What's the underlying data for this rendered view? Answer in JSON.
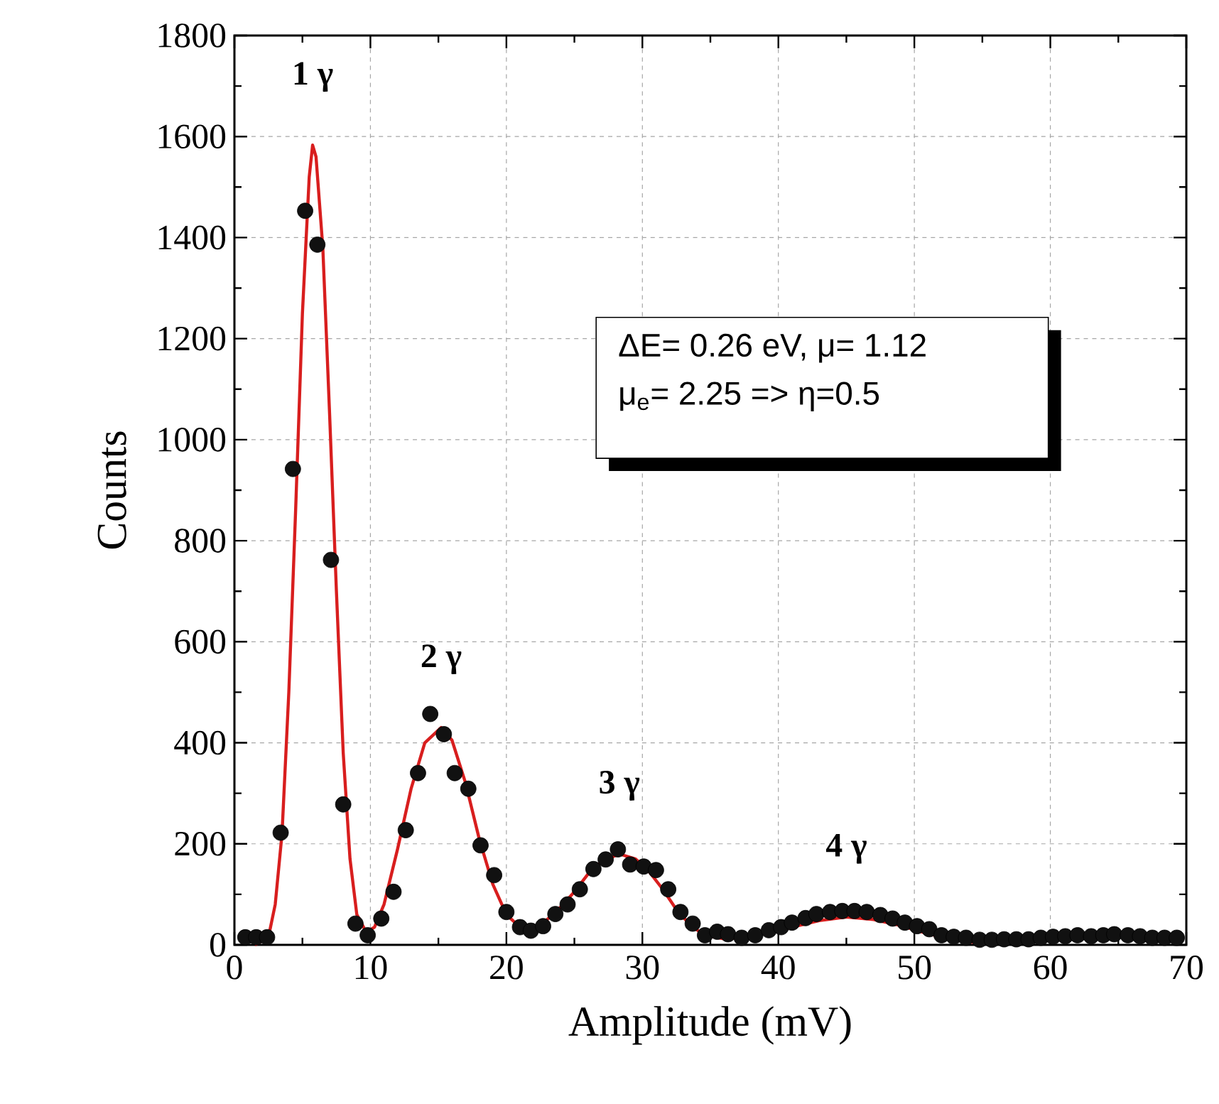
{
  "chart_data": {
    "type": "scatter",
    "xlabel": "Amplitude (mV)",
    "ylabel": "Counts",
    "xlim": [
      0,
      70
    ],
    "ylim": [
      0,
      1800
    ],
    "xticks": [
      0,
      10,
      20,
      30,
      40,
      50,
      60,
      70
    ],
    "yticks": [
      0,
      200,
      400,
      600,
      800,
      1000,
      1200,
      1400,
      1600,
      1800
    ],
    "grid": true,
    "annotations": [
      {
        "text": "1 γ",
        "x": 5.75,
        "y": 1583
      },
      {
        "text": "2 γ",
        "x": 15.2,
        "y": 430
      },
      {
        "text": "3 γ",
        "x": 28.3,
        "y": 180
      },
      {
        "text": "4 γ",
        "x": 45,
        "y": 55
      },
      "ΔE= 0.26 eV, μ= 1.12",
      "μ$_{e}$= 2.25 => η=0.5"
    ],
    "series": [
      {
        "color": "#111111",
        "x": [
          0.8,
          1.6,
          2.4,
          3.4,
          4.3,
          5.2,
          6.1,
          7.1,
          8.0,
          8.9,
          9.8,
          10.8,
          11.7,
          12.6,
          13.5,
          14.4,
          15.4,
          16.2,
          17.2,
          18.1,
          19.1,
          20.0,
          21.0,
          21.8,
          22.7,
          23.6,
          24.5,
          25.4,
          26.4,
          27.3,
          28.2,
          29.1,
          30.1,
          31.0,
          31.9,
          32.8,
          33.7,
          34.6,
          35.5,
          36.3,
          37.3,
          38.3,
          39.3,
          40.2,
          41.0,
          42.0,
          42.8,
          43.8,
          44.7,
          45.6,
          46.5,
          47.5,
          48.4,
          49.3,
          50.2,
          51.1,
          52.0,
          52.9,
          53.8,
          54.8,
          55.7,
          56.6,
          57.5,
          58.4,
          59.3,
          60.2,
          61.1,
          62.0,
          63.0,
          63.9,
          64.7,
          65.7,
          66.6,
          67.5,
          68.4,
          69.3
        ],
        "values": [
          15,
          15,
          15,
          222,
          942,
          1453,
          1386,
          762,
          278,
          42,
          19,
          52,
          105,
          227,
          340,
          457,
          417,
          340,
          309,
          197,
          138,
          65,
          35,
          28,
          37,
          61,
          80,
          110,
          150,
          169,
          189,
          159,
          155,
          148,
          110,
          65,
          42,
          19,
          26,
          21,
          14,
          19,
          29,
          35,
          44,
          53,
          61,
          65,
          67,
          67,
          65,
          59,
          52,
          44,
          37,
          31,
          19,
          16,
          14,
          10,
          10,
          11,
          11,
          11,
          14,
          16,
          17,
          19,
          17,
          19,
          21,
          19,
          17,
          14,
          14,
          14
        ]
      },
      {
        "type": "line",
        "color": "#d81e1e",
        "x": [
          1.5,
          2.5,
          3.0,
          3.5,
          4.0,
          4.5,
          5.0,
          5.5,
          5.75,
          6.0,
          6.5,
          7.0,
          7.5,
          8.0,
          8.5,
          9.0,
          9.7,
          10.3,
          11.0,
          12.0,
          13.0,
          14.0,
          15.2,
          16.0,
          17.0,
          18.0,
          19.0,
          20.0,
          21.0,
          22.0,
          23.0,
          24.0,
          25.0,
          26.0,
          27.0,
          28.3,
          29.5,
          30.5,
          31.5,
          32.5,
          33.5,
          34.5,
          36.0,
          37.5,
          39.0,
          41.0,
          43.0,
          45.0,
          47.0,
          49.0,
          51.0,
          53.0,
          54.8
        ],
        "values": [
          0,
          15,
          80,
          220,
          500,
          860,
          1250,
          1520,
          1583,
          1560,
          1380,
          1050,
          700,
          380,
          170,
          60,
          25,
          35,
          80,
          190,
          310,
          400,
          430,
          405,
          320,
          210,
          120,
          60,
          35,
          35,
          50,
          75,
          105,
          140,
          165,
          180,
          170,
          145,
          110,
          70,
          40,
          20,
          12,
          15,
          22,
          35,
          48,
          55,
          50,
          38,
          22,
          10,
          3
        ]
      }
    ]
  }
}
